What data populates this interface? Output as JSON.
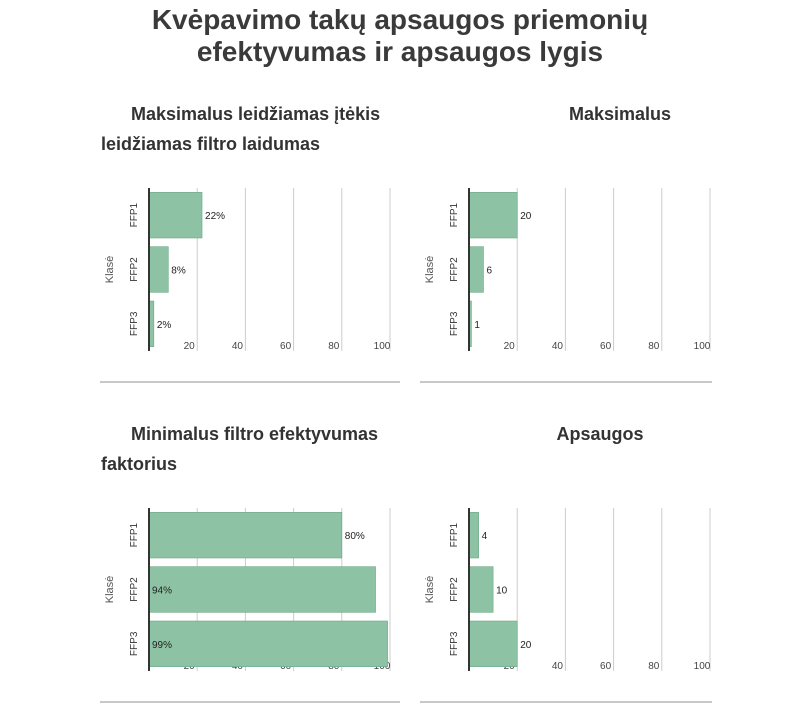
{
  "title_lines": [
    "Kvėpavimo takų apsaugos priemonių",
    "efektyvumas ir apsaugos lygis"
  ],
  "colors": {
    "bar": "#8dc3a4",
    "bar_edge": "#6aa885",
    "grid": "#cccccc",
    "axis": "#333333",
    "divider": "#c8c8c8"
  },
  "chart_data": [
    {
      "type": "bar",
      "orientation": "horizontal",
      "title_lines": [
        "Maksimalus leidžiamas įtėkis",
        "leidžiamas filtro laidumas"
      ],
      "ylabel": "Klasė",
      "categories": [
        "FFP1",
        "FFP2",
        "FFP3"
      ],
      "values": [
        22,
        8,
        2
      ],
      "value_labels": [
        "22%",
        "8%",
        "2%"
      ],
      "xticks": [
        "20",
        "40",
        "60",
        "80",
        "100"
      ],
      "xlim": [
        0,
        100
      ],
      "grid": true
    },
    {
      "type": "bar",
      "orientation": "horizontal",
      "title_lines": [
        "Maksimalus"
      ],
      "ylabel": "Klasė",
      "categories": [
        "FFP1",
        "FFP2",
        "FFP3"
      ],
      "values": [
        20,
        6,
        1
      ],
      "value_labels": [
        "20",
        "6",
        "1"
      ],
      "xticks": [
        "20",
        "40",
        "60",
        "80",
        "100"
      ],
      "xlim": [
        0,
        100
      ],
      "grid": true
    },
    {
      "type": "bar",
      "orientation": "horizontal",
      "title_lines": [
        "Minimalus filtro efektyvumas",
        "faktorius"
      ],
      "ylabel": "Klasė",
      "categories": [
        "FFP1",
        "FFP2",
        "FFP3"
      ],
      "values": [
        80,
        94,
        99
      ],
      "value_labels": [
        "80%",
        "94%",
        "99%"
      ],
      "xticks": [
        "20",
        "40",
        "60",
        "80",
        "100"
      ],
      "xlim": [
        0,
        100
      ],
      "grid": true
    },
    {
      "type": "bar",
      "orientation": "horizontal",
      "title_lines": [
        "Apsaugos"
      ],
      "ylabel": "Klasė",
      "categories": [
        "FFP1",
        "FFP2",
        "FFP3"
      ],
      "values": [
        4,
        10,
        20
      ],
      "value_labels": [
        "4",
        "10",
        "20"
      ],
      "xticks": [
        "20",
        "40",
        "60",
        "80",
        "100"
      ],
      "xlim": [
        0,
        100
      ],
      "grid": true
    }
  ]
}
